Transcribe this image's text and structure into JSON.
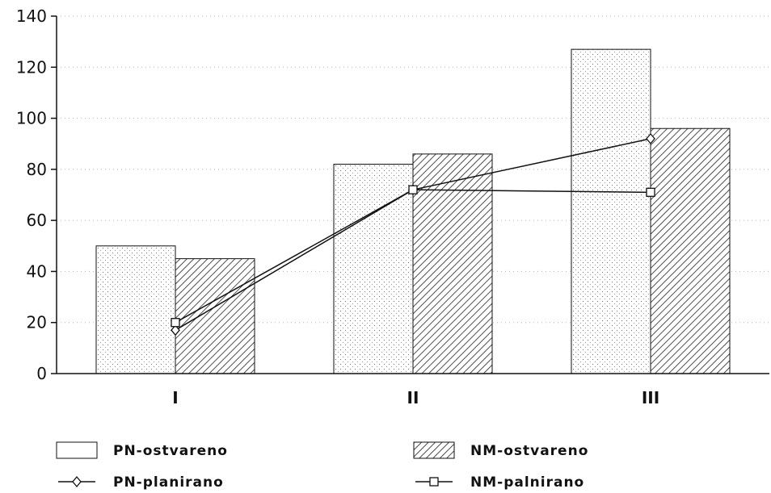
{
  "chart_data": {
    "type": "bar",
    "categories": [
      "I",
      "II",
      "III"
    ],
    "ylim": [
      0,
      140
    ],
    "yticks": [
      0,
      20,
      40,
      60,
      80,
      100,
      120,
      140
    ],
    "grid": true,
    "legend_position": "bottom",
    "bar_series": [
      {
        "name": "PN-ostvareno",
        "values": [
          50,
          82,
          127
        ],
        "pattern": "dots"
      },
      {
        "name": "NM-ostvareno",
        "values": [
          45,
          86,
          96
        ],
        "pattern": "hatch"
      }
    ],
    "line_series": [
      {
        "name": "PN-planirano",
        "values": [
          17,
          72,
          92
        ],
        "marker": "diamond"
      },
      {
        "name": "NM-palnirano",
        "values": [
          20,
          72,
          71
        ],
        "marker": "square"
      }
    ]
  }
}
